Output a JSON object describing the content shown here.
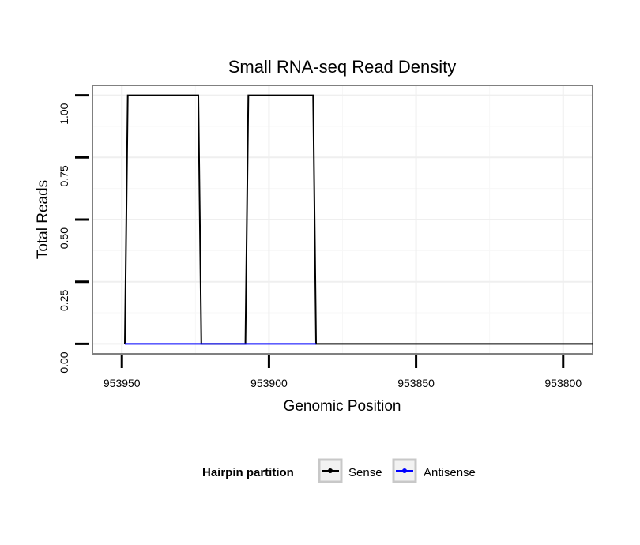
{
  "chart_data": {
    "type": "line",
    "title": "Small RNA-seq Read Density",
    "xlabel": "Genomic Position",
    "ylabel": "Total Reads",
    "x_reversed": true,
    "xlim": [
      953960,
      953790
    ],
    "ylim": [
      -0.04,
      1.04
    ],
    "xticks": [
      953950,
      953900,
      953850,
      953800
    ],
    "yticks": [
      0.0,
      0.25,
      0.5,
      0.75,
      1.0
    ],
    "ytick_labels": [
      "0.00",
      "0.25",
      "0.50",
      "0.75",
      "1.00"
    ],
    "grid": true,
    "legend": {
      "title": "Hairpin partition",
      "position": "bottom",
      "entries": [
        "Sense",
        "Antisense"
      ]
    },
    "series": [
      {
        "name": "Sense",
        "color": "#000000",
        "x": [
          953949,
          953948,
          953924,
          953923,
          953908,
          953907,
          953885,
          953884,
          953790
        ],
        "y": [
          0,
          1,
          1,
          0,
          0,
          1,
          1,
          0,
          0
        ]
      },
      {
        "name": "Antisense",
        "color": "#0000ff",
        "x": [
          953949,
          953884
        ],
        "y": [
          0,
          0
        ]
      }
    ]
  }
}
